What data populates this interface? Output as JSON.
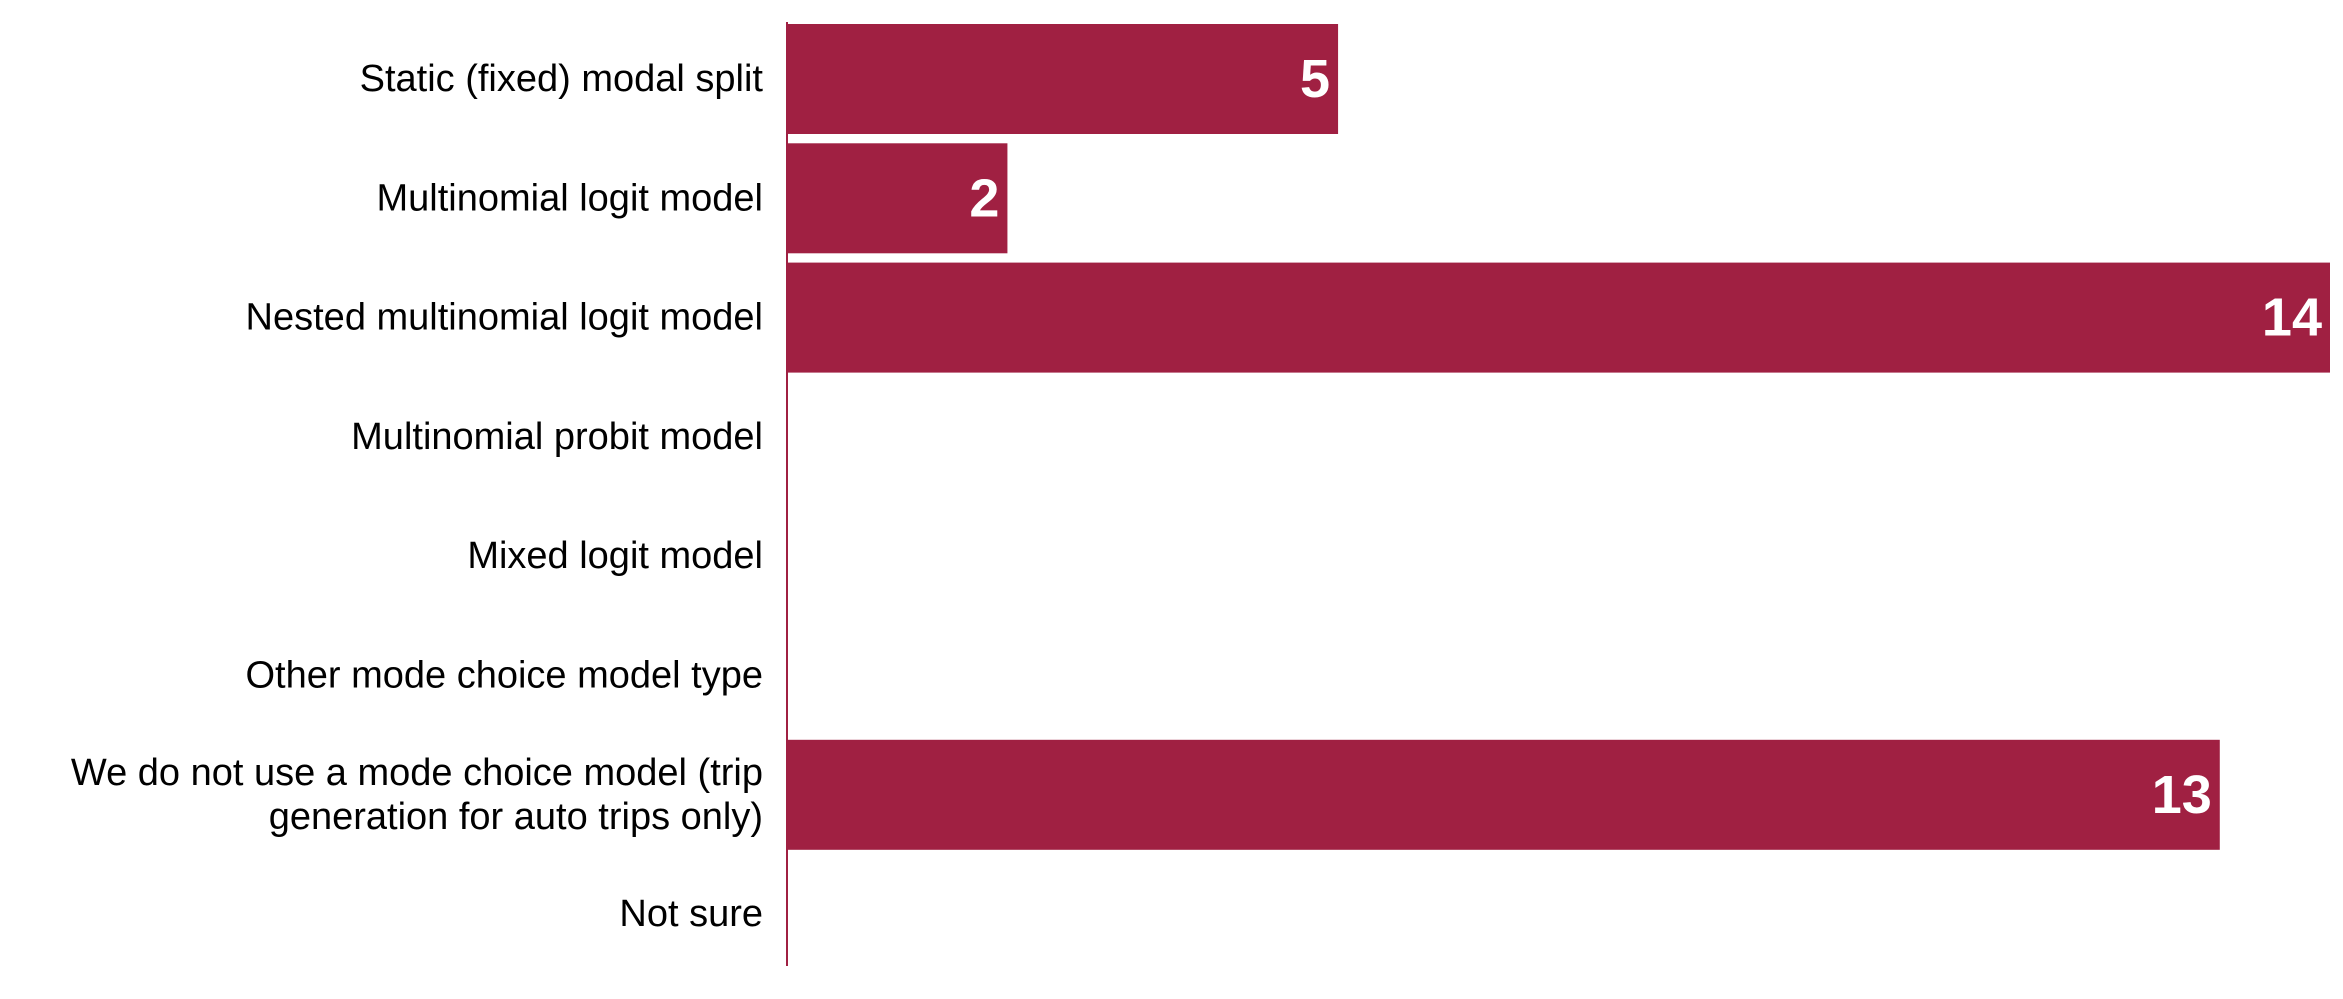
{
  "chart_data": {
    "type": "bar",
    "orientation": "horizontal",
    "categories": [
      [
        "Static (fixed) modal split"
      ],
      [
        "Multinomial logit model"
      ],
      [
        "Nested multinomial logit model"
      ],
      [
        "Multinomial probit model"
      ],
      [
        "Mixed logit model"
      ],
      [
        "Other mode choice model type"
      ],
      [
        "We do not use a mode choice model (trip",
        "generation for auto trips only)"
      ],
      [
        "Not sure"
      ]
    ],
    "values": [
      5,
      2,
      14,
      0,
      0,
      0,
      13,
      0
    ],
    "data_labels": [
      "5",
      "2",
      "14",
      "",
      "",
      "",
      "13",
      ""
    ],
    "xlim": [
      0,
      14
    ],
    "grid": false,
    "legend": "none",
    "colors": {
      "bar": "#A02042",
      "value_text": "#FFFFFF",
      "category_text": "#000000"
    }
  }
}
